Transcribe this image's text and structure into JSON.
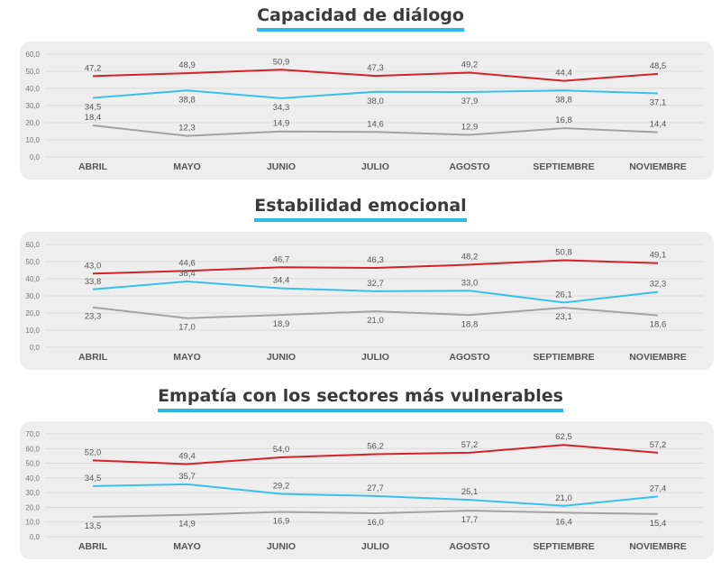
{
  "colors": {
    "red_series": "#d2232a",
    "blue_series": "#38c0ec",
    "gray_series": "#a3a3a3",
    "title_underline": "#2bb9e6",
    "panel_bg": "#eeeeee"
  },
  "chart_data": [
    {
      "type": "line",
      "title": "Capacidad de diálogo",
      "categories": [
        "ABRIL",
        "MAYO",
        "JUNIO",
        "JULIO",
        "AGOSTO",
        "SEPTIEMBRE",
        "NOVIEMBRE"
      ],
      "ylim": [
        0,
        60
      ],
      "yticks": [
        "0,0",
        "10,0",
        "20,0",
        "30,0",
        "40,0",
        "50,0",
        "60,0"
      ],
      "grid": true,
      "series": [
        {
          "color": "#d2232a",
          "values": [
            47.2,
            48.9,
            50.9,
            47.3,
            49.2,
            44.4,
            48.5
          ],
          "labels": [
            "47,2",
            "48,9",
            "50,9",
            "47,3",
            "49,2",
            "44,4",
            "48,5"
          ],
          "label_side": "above"
        },
        {
          "color": "#38c0ec",
          "values": [
            34.5,
            38.8,
            34.3,
            38.0,
            37.9,
            38.8,
            37.1
          ],
          "labels": [
            "34,5",
            "38,8",
            "34,3",
            "38,0",
            "37,9",
            "38,8",
            "37,1"
          ],
          "label_side": "below"
        },
        {
          "color": "#a3a3a3",
          "values": [
            18.4,
            12.3,
            14.9,
            14.6,
            12.9,
            16.8,
            14.4
          ],
          "labels": [
            "18,4",
            "12,3",
            "14,9",
            "14,6",
            "12,9",
            "16,8",
            "14,4"
          ],
          "label_side": "above"
        }
      ]
    },
    {
      "type": "line",
      "title": "Estabilidad emocional",
      "categories": [
        "ABRIL",
        "MAYO",
        "JUNIO",
        "JULIO",
        "AGOSTO",
        "SEPTIEMBRE",
        "NOVIEMBRE"
      ],
      "ylim": [
        0,
        60
      ],
      "yticks": [
        "0,0",
        "10,0",
        "20,0",
        "30,0",
        "40,0",
        "50,0",
        "60,0"
      ],
      "grid": true,
      "series": [
        {
          "color": "#d2232a",
          "values": [
            43.0,
            44.6,
            46.7,
            46.3,
            48.2,
            50.8,
            49.1
          ],
          "labels": [
            "43,0",
            "44,6",
            "46,7",
            "46,3",
            "48,2",
            "50,8",
            "49,1"
          ],
          "label_side": "above"
        },
        {
          "color": "#38c0ec",
          "values": [
            33.8,
            38.4,
            34.4,
            32.7,
            33.0,
            26.1,
            32.3
          ],
          "labels": [
            "33,8",
            "38,4",
            "34,4",
            "32,7",
            "33,0",
            "26,1",
            "32,3"
          ],
          "label_side": "above"
        },
        {
          "color": "#a3a3a3",
          "values": [
            23.3,
            17.0,
            18.9,
            21.0,
            18.8,
            23.1,
            18.6
          ],
          "labels": [
            "23,3",
            "17,0",
            "18,9",
            "21,0",
            "18,8",
            "23,1",
            "18,6"
          ],
          "label_side": "below"
        }
      ]
    },
    {
      "type": "line",
      "title": "Empatía con los sectores más vulnerables",
      "categories": [
        "ABRIL",
        "MAYO",
        "JUNIO",
        "JULIO",
        "AGOSTO",
        "SEPTIEMBRE",
        "NOVIEMBRE"
      ],
      "ylim": [
        0,
        70
      ],
      "yticks": [
        "0,0",
        "10,0",
        "20,0",
        "30,0",
        "40,0",
        "50,0",
        "60,0",
        "70,0"
      ],
      "grid": true,
      "series": [
        {
          "color": "#d2232a",
          "values": [
            52.0,
            49.4,
            54.0,
            56.2,
            57.2,
            62.5,
            57.2
          ],
          "labels": [
            "52,0",
            "49,4",
            "54,0",
            "56,2",
            "57,2",
            "62,5",
            "57,2"
          ],
          "label_side": "above"
        },
        {
          "color": "#38c0ec",
          "values": [
            34.5,
            35.7,
            29.2,
            27.7,
            25.1,
            21.0,
            27.4
          ],
          "labels": [
            "34,5",
            "35,7",
            "29,2",
            "27,7",
            "25,1",
            "21,0",
            "27,4"
          ],
          "label_side": "above"
        },
        {
          "color": "#a3a3a3",
          "values": [
            13.5,
            14.9,
            16.9,
            16.0,
            17.7,
            16.4,
            15.4
          ],
          "labels": [
            "13,5",
            "14,9",
            "16,9",
            "16,0",
            "17,7",
            "16,4",
            "15,4"
          ],
          "label_side": "below"
        }
      ]
    }
  ]
}
